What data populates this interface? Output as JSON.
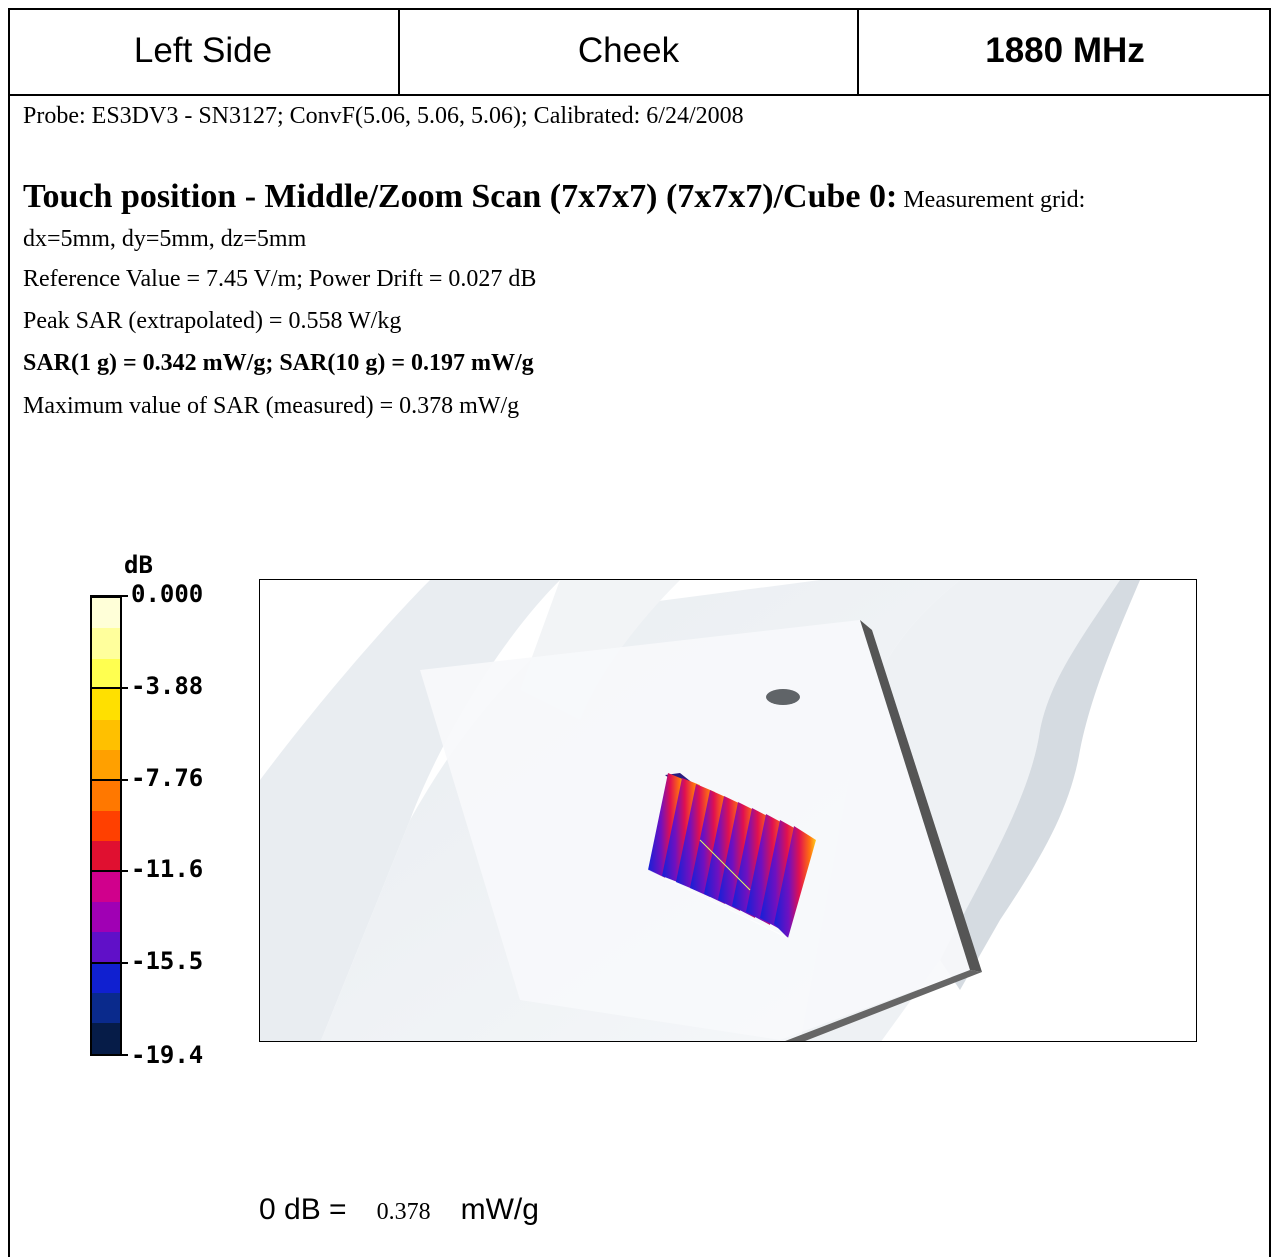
{
  "header": {
    "side": "Left Side",
    "position": "Cheek",
    "frequency": "1880 MHz"
  },
  "probe_line": "Probe: ES3DV3 - SN3127; ConvF(5.06, 5.06, 5.06); Calibrated: 6/24/2008",
  "scan": {
    "title": "Touch position - Middle/Zoom Scan (7x7x7) (7x7x7)/Cube 0:",
    "grid_label": "Measurement grid:",
    "grid_values": "dx=5mm, dy=5mm, dz=5mm",
    "reference": "Reference Value = 7.45 V/m; Power Drift = 0.027 dB",
    "peak": "Peak SAR (extrapolated) = 0.558 W/kg",
    "sar": "SAR(1 g) = 0.342 mW/g; SAR(10 g) = 0.197 mW/g",
    "max": "Maximum value of SAR (measured) = 0.378 mW/g"
  },
  "legend": {
    "unit": "dB",
    "labels": [
      "0.000",
      "-3.88",
      "-7.76",
      "-11.6",
      "-15.5",
      "-19.4"
    ],
    "colors": [
      "#ffffd8",
      "#ffff9c",
      "#ffff50",
      "#ffe000",
      "#ffc000",
      "#ffa000",
      "#ff7800",
      "#ff4000",
      "#e01030",
      "#d0008c",
      "#a000b4",
      "#6010c8",
      "#1020d0",
      "#0a2a8c",
      "#061c48"
    ]
  },
  "footer": {
    "prefix": "0 dB =",
    "value": "0.378",
    "unit": "mW/g"
  }
}
